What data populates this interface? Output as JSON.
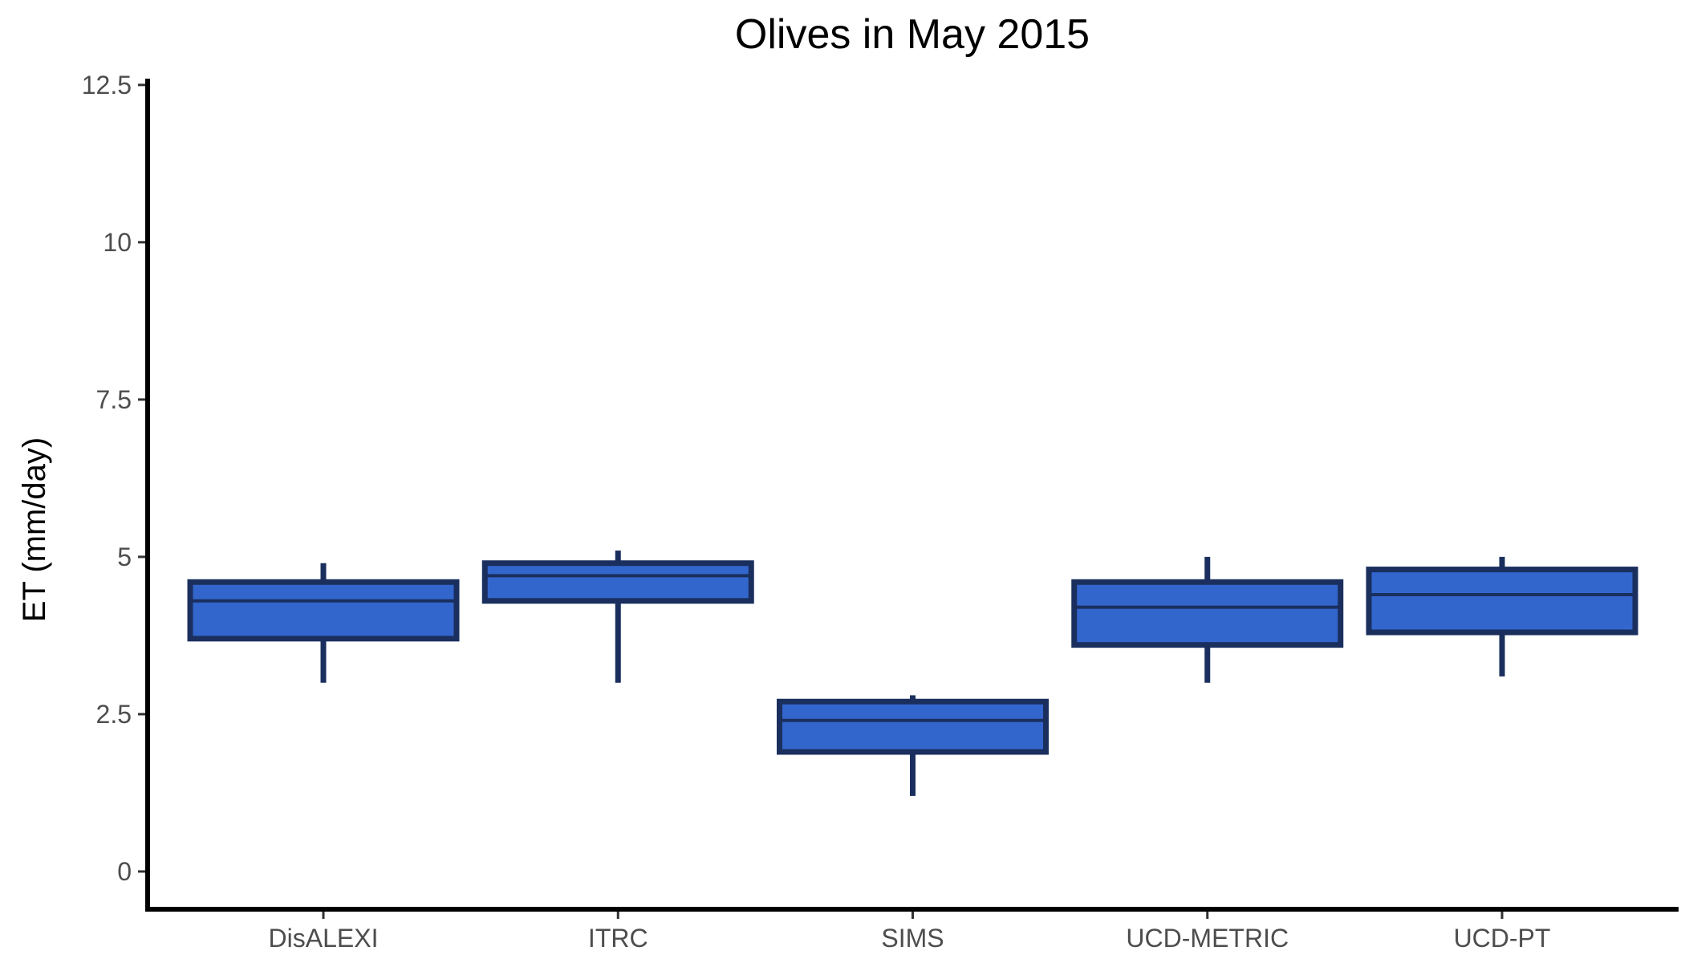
{
  "chart_data": {
    "type": "box",
    "title": "Olives in May 2015",
    "xlabel": "",
    "ylabel": "ET (mm/day)",
    "ylim": [
      -0.6,
      12.6
    ],
    "yticks": [
      0,
      2.5,
      5,
      7.5,
      10,
      12.5
    ],
    "ytick_labels": [
      "0",
      "2.5",
      "5",
      "7.5",
      "10",
      "12.5"
    ],
    "categories": [
      "DisALEXI",
      "ITRC",
      "SIMS",
      "UCD-METRIC",
      "UCD-PT"
    ],
    "boxes": [
      {
        "category": "DisALEXI",
        "whisker_low": 3.0,
        "q1": 3.7,
        "median": 4.3,
        "q3": 4.6,
        "whisker_high": 4.9
      },
      {
        "category": "ITRC",
        "whisker_low": 3.0,
        "q1": 4.3,
        "median": 4.7,
        "q3": 4.9,
        "whisker_high": 5.1
      },
      {
        "category": "SIMS",
        "whisker_low": 1.2,
        "q1": 1.9,
        "median": 2.4,
        "q3": 2.7,
        "whisker_high": 2.8
      },
      {
        "category": "UCD-METRIC",
        "whisker_low": 3.0,
        "q1": 3.6,
        "median": 4.2,
        "q3": 4.6,
        "whisker_high": 5.0
      },
      {
        "category": "UCD-PT",
        "whisker_low": 3.1,
        "q1": 3.8,
        "median": 4.4,
        "q3": 4.8,
        "whisker_high": 5.0
      }
    ],
    "colors": {
      "box_fill": "#3366cc",
      "box_outline": "#1a2f5e",
      "axis": "#000000"
    },
    "grid": false,
    "legend": "none"
  }
}
